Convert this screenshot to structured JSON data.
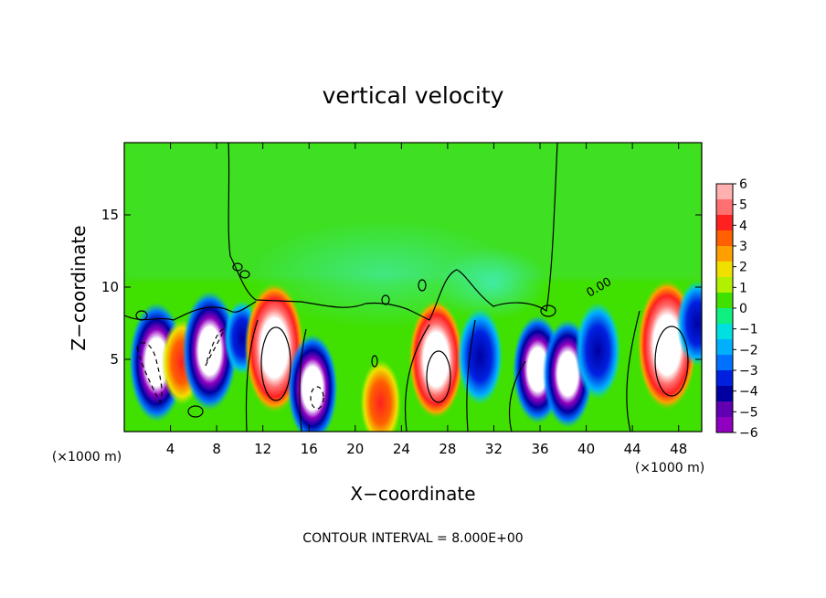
{
  "chart_data": {
    "type": "heatmap",
    "title": "vertical velocity",
    "xlabel": "X−coordinate",
    "ylabel": "Z−coordinate",
    "x_unit_left": "(×1000 m)",
    "x_unit_right": "(×1000 m)",
    "x_range": [
      0,
      50
    ],
    "y_range": [
      0,
      20
    ],
    "x_ticks": [
      4,
      8,
      12,
      16,
      20,
      24,
      28,
      32,
      36,
      40,
      44,
      48
    ],
    "y_ticks": [
      5,
      10,
      15
    ],
    "footer": "CONTOUR INTERVAL = 8.000E+00",
    "contour_label": "0.00",
    "colorbar": {
      "ticks": [
        6,
        5,
        4,
        3,
        2,
        1,
        0,
        -1,
        -2,
        -3,
        -4,
        -5,
        -6
      ],
      "tick_labels": [
        "6",
        "5",
        "4",
        "3",
        "2",
        "1",
        "0",
        "−1",
        "−2",
        "−3",
        "−4",
        "−5",
        "−6"
      ],
      "colors": [
        "#ffb0b0",
        "#ff7070",
        "#ff2020",
        "#ff6000",
        "#ffa000",
        "#f0e000",
        "#b0f000",
        "#40e000",
        "#10f080",
        "#00e0e0",
        "#00b0ff",
        "#0070ff",
        "#0020e0",
        "#0000a0",
        "#6000b0",
        "#9000c0"
      ]
    },
    "features": [
      {
        "x": 2.8,
        "z": 4.8,
        "w": -7
      },
      {
        "x": 5.0,
        "z": 4.8,
        "w": 4
      },
      {
        "x": 7.4,
        "z": 5.6,
        "w": -7
      },
      {
        "x": 10.2,
        "z": 6.5,
        "w": -3
      },
      {
        "x": 13.0,
        "z": 5.8,
        "w": 8
      },
      {
        "x": 16.3,
        "z": 3.0,
        "w": -6
      },
      {
        "x": 22.2,
        "z": 2.0,
        "w": 4
      },
      {
        "x": 27.0,
        "z": 5.0,
        "w": 7
      },
      {
        "x": 30.8,
        "z": 5.2,
        "w": -5
      },
      {
        "x": 35.8,
        "z": 4.3,
        "w": -6
      },
      {
        "x": 38.4,
        "z": 4.0,
        "w": -6
      },
      {
        "x": 41.0,
        "z": 5.6,
        "w": -5
      },
      {
        "x": 47.0,
        "z": 6.0,
        "w": 8
      },
      {
        "x": 49.6,
        "z": 7.5,
        "w": -4
      }
    ]
  }
}
